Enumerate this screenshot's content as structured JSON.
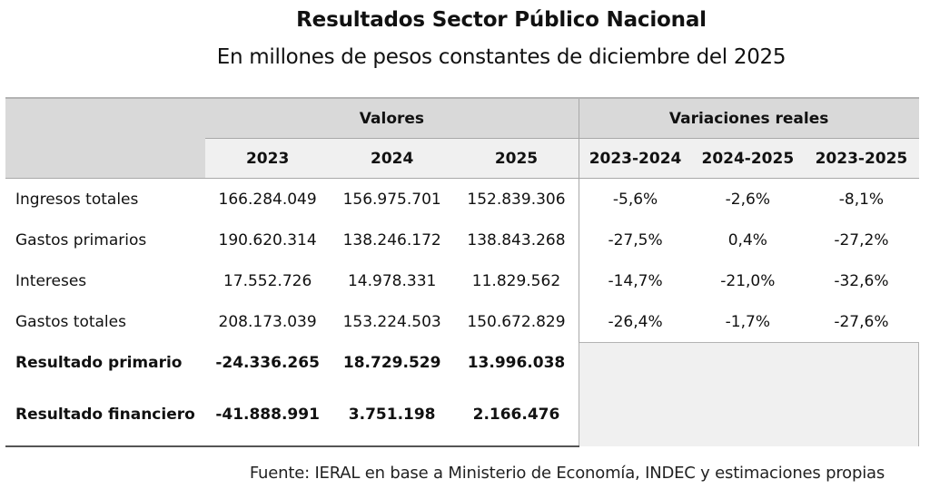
{
  "title": "Resultados Sector Público Nacional",
  "subtitle": "En millones de pesos constantes de diciembre del 2025",
  "table": {
    "group_headers": [
      "Valores",
      "Variaciones reales"
    ],
    "value_columns": [
      "2023",
      "2024",
      "2025"
    ],
    "variation_columns": [
      "2023-2024",
      "2024-2025",
      "2023-2025"
    ],
    "rows": [
      {
        "label": "Ingresos totales",
        "values": [
          "166.284.049",
          "156.975.701",
          "152.839.306"
        ],
        "variations": [
          "-5,6%",
          "-2,6%",
          "-8,1%"
        ]
      },
      {
        "label": "Gastos primarios",
        "values": [
          "190.620.314",
          "138.246.172",
          "138.843.268"
        ],
        "variations": [
          "-27,5%",
          "0,4%",
          "-27,2%"
        ]
      },
      {
        "label": "Intereses",
        "values": [
          "17.552.726",
          "14.978.331",
          "11.829.562"
        ],
        "variations": [
          "-14,7%",
          "-21,0%",
          "-32,6%"
        ]
      },
      {
        "label": "Gastos totales",
        "values": [
          "208.173.039",
          "153.224.503",
          "150.672.829"
        ],
        "variations": [
          "-26,4%",
          "-1,7%",
          "-27,6%"
        ]
      },
      {
        "label": "Resultado primario",
        "values": [
          "-24.336.265",
          "18.729.529",
          "13.996.038"
        ],
        "variations": []
      },
      {
        "label": "Resultado financiero",
        "values": [
          "-41.888.991",
          "3.751.198",
          "2.166.476"
        ],
        "variations": []
      }
    ]
  },
  "source": "Fuente: IERAL en base a Ministerio de Economía, INDEC y estimaciones propias",
  "colors": {
    "header_band": "#d9d9d9",
    "subheader_band": "#f0f0f0",
    "empty_cell": "#f0f0f0"
  }
}
